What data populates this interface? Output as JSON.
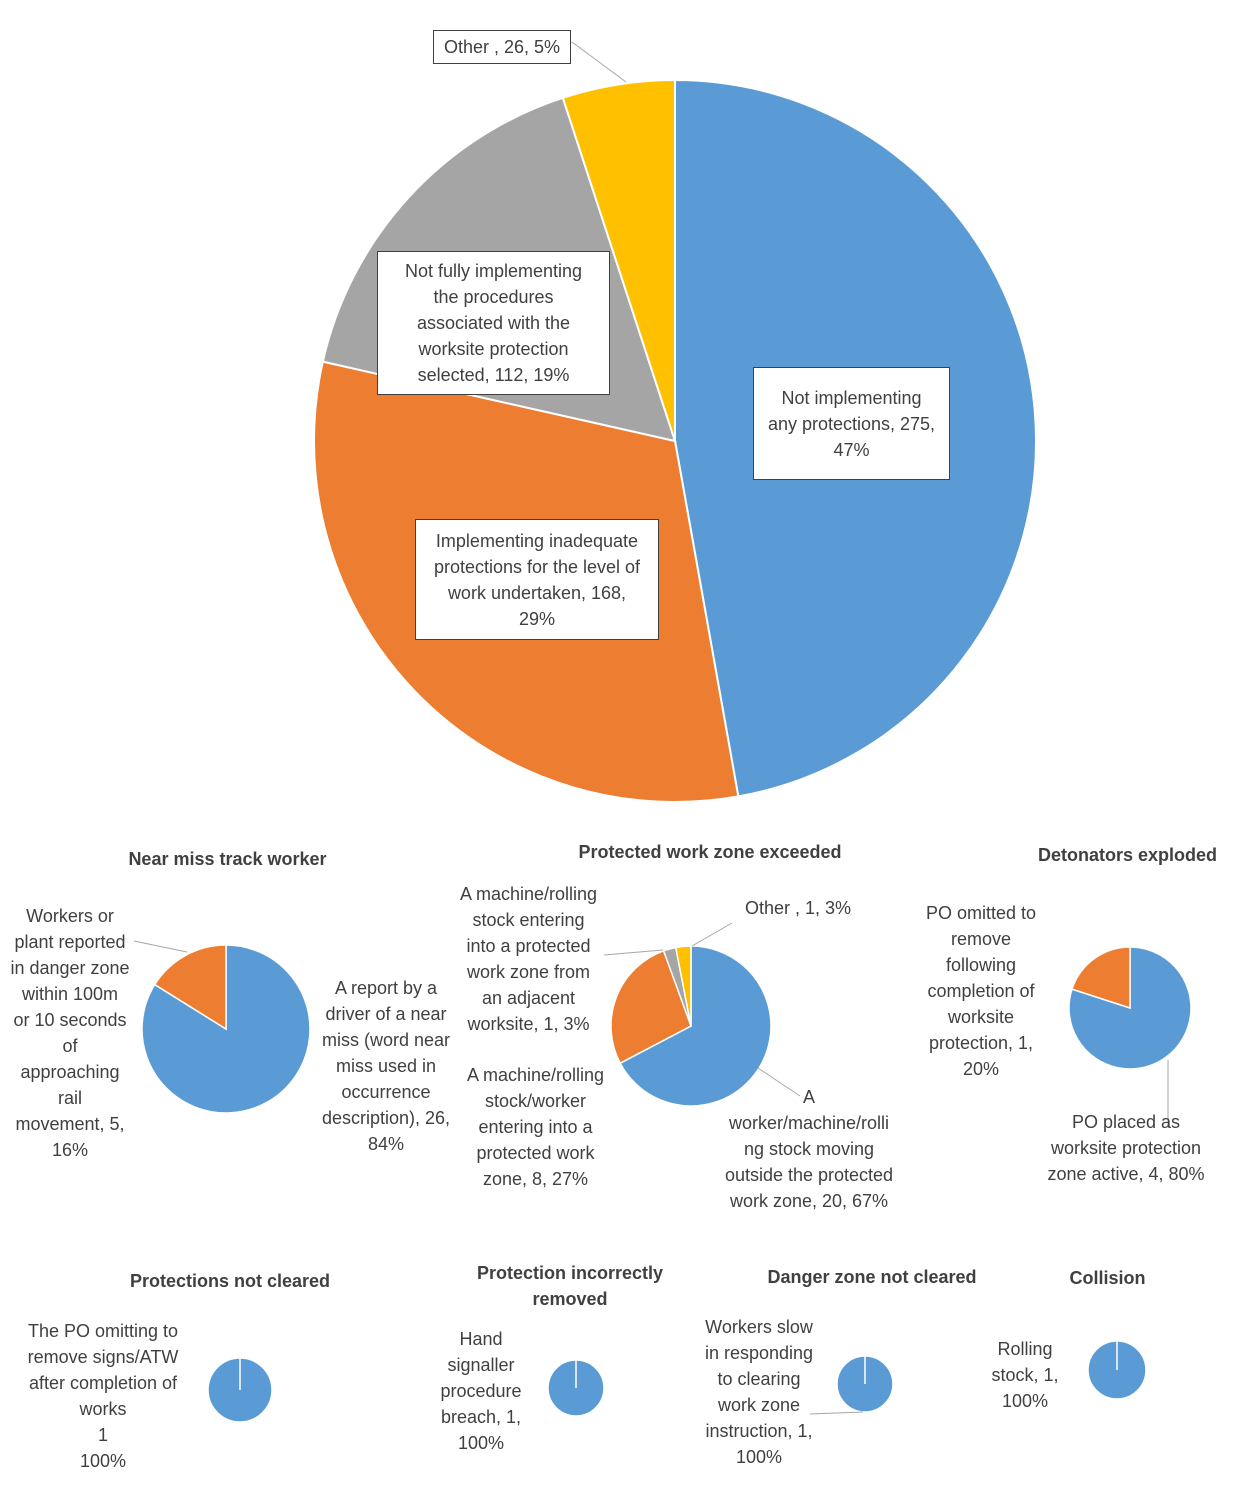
{
  "colors": {
    "blue": "#5B9BD5",
    "orange": "#ED7D31",
    "gray": "#A5A5A5",
    "yellow": "#FFC000",
    "text": "#404040",
    "leader": "#A6A6A6"
  },
  "chart_data": [
    {
      "type": "pie",
      "title": "",
      "slices": [
        {
          "name": "Not implementing any protections",
          "value": 275,
          "percent": 47,
          "color": "#5B9BD5",
          "label": "Not implementing\nany protections, 275,\n47%"
        },
        {
          "name": "Implementing inadequate protections for the level of work undertaken",
          "value": 168,
          "percent": 29,
          "color": "#ED7D31",
          "label": "Implementing inadequate\nprotections for the level of\nwork undertaken, 168,\n29%"
        },
        {
          "name": "Not fully implementing the procedures associated with the worksite protection selected",
          "value": 112,
          "percent": 19,
          "color": "#A5A5A5",
          "label": "Not fully implementing\nthe procedures\nassociated with the\nworksite protection\nselected, 112, 19%"
        },
        {
          "name": "Other",
          "value": 26,
          "percent": 5,
          "color": "#FFC000",
          "label": "Other , 26, 5%"
        }
      ]
    },
    {
      "type": "pie",
      "title": "Near miss track worker",
      "slices": [
        {
          "name": "A report by a driver of a near miss (word near miss used in occurrence description)",
          "value": 26,
          "percent": 84,
          "color": "#5B9BD5",
          "label": "A report by a\ndriver of a near\nmiss (word near\nmiss used in\noccurrence\ndescription), 26,\n84%"
        },
        {
          "name": "Workers or plant reported in danger zone within 100m or 10 seconds of approaching rail movement",
          "value": 5,
          "percent": 16,
          "color": "#ED7D31",
          "label": "Workers or\nplant reported\nin danger zone\nwithin 100m\nor 10 seconds\nof\napproaching\nrail\nmovement, 5,\n16%"
        }
      ]
    },
    {
      "type": "pie",
      "title": "Protected work zone exceeded",
      "slices": [
        {
          "name": "A worker/machine/rolling stock moving outside the protected work zone",
          "value": 20,
          "percent": 67,
          "color": "#5B9BD5",
          "label": "A\nworker/machine/rolli\nng stock moving\noutside the protected\nwork zone, 20, 67%"
        },
        {
          "name": "A machine/rolling stock/worker entering into a protected work zone",
          "value": 8,
          "percent": 27,
          "color": "#ED7D31",
          "label": "A machine/rolling\nstock/worker\nentering into a\nprotected work\nzone, 8, 27%"
        },
        {
          "name": "A machine/rolling stock entering into a protected work zone from an adjacent worksite",
          "value": 1,
          "percent": 3,
          "color": "#A5A5A5",
          "label": "A machine/rolling\nstock entering\ninto a protected\nwork zone from\nan adjacent\nworksite, 1, 3%"
        },
        {
          "name": "Other",
          "value": 1,
          "percent": 3,
          "color": "#FFC000",
          "label": "Other , 1, 3%"
        }
      ]
    },
    {
      "type": "pie",
      "title": "Detonators exploded",
      "slices": [
        {
          "name": "PO placed as worksite protection zone active",
          "value": 4,
          "percent": 80,
          "color": "#5B9BD5",
          "label": "PO placed as\nworksite protection\nzone active, 4, 80%"
        },
        {
          "name": "PO omitted to remove following completion of worksite protection",
          "value": 1,
          "percent": 20,
          "color": "#ED7D31",
          "label": "PO omitted to\nremove\nfollowing\ncompletion of\nworksite\nprotection, 1,\n20%"
        }
      ]
    },
    {
      "type": "pie",
      "title": "Protections not cleared",
      "slices": [
        {
          "name": "The PO omitting to remove signs/ATW after completion of works",
          "value": 1,
          "percent": 100,
          "color": "#5B9BD5",
          "label": "The PO omitting to\nremove signs/ATW\nafter completion of\nworks\n1\n100%"
        }
      ]
    },
    {
      "type": "pie",
      "title": "Protection incorrectly\nremoved",
      "slices": [
        {
          "name": "Hand signaller procedure breach",
          "value": 1,
          "percent": 100,
          "color": "#5B9BD5",
          "label": "Hand\nsignaller\nprocedure\nbreach, 1,\n100%"
        }
      ]
    },
    {
      "type": "pie",
      "title": "Danger zone not cleared",
      "slices": [
        {
          "name": "Workers slow in responding to clearing work zone instruction",
          "value": 1,
          "percent": 100,
          "color": "#5B9BD5",
          "label": "Workers slow\nin responding\nto clearing\nwork zone\ninstruction, 1,\n100%"
        }
      ]
    },
    {
      "type": "pie",
      "title": "Collision",
      "slices": [
        {
          "name": "Rolling stock",
          "value": 1,
          "percent": 100,
          "color": "#5B9BD5",
          "label": "Rolling\nstock, 1,\n100%"
        }
      ]
    }
  ]
}
